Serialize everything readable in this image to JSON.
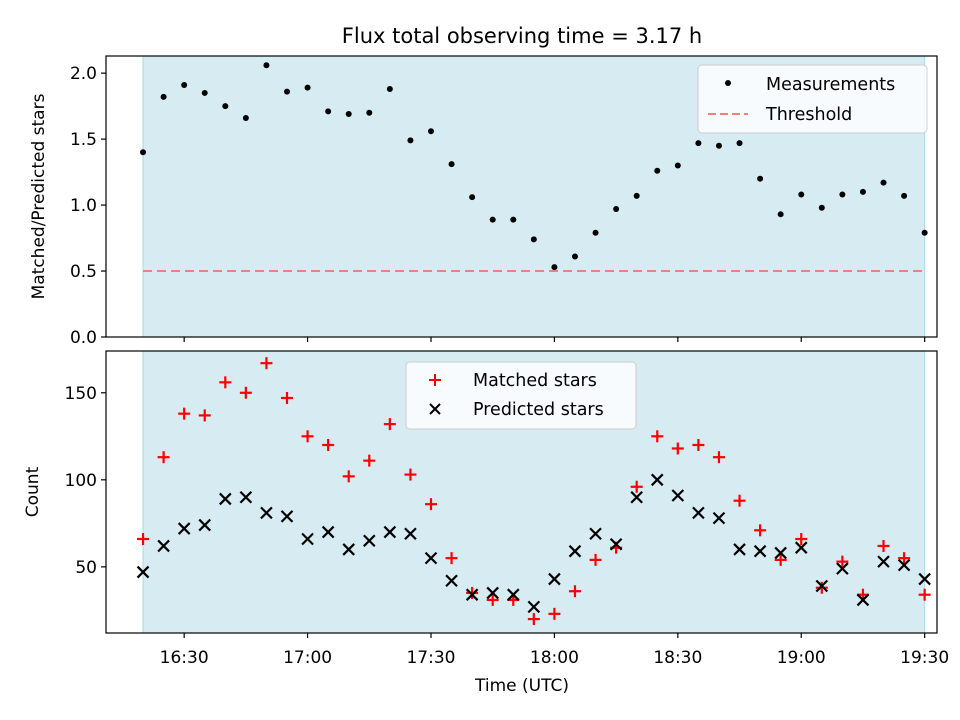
{
  "colors": {
    "shade": "#add8e6",
    "measure": "#000000",
    "threshold": "#f08080",
    "matched": "#ff0000",
    "predicted": "#000000"
  },
  "chart_data": [
    {
      "type": "scatter",
      "title": "Flux total observing time = 3.17 h",
      "xlabel": "",
      "ylabel": "Matched/Predicted stars",
      "xlim": [
        "16:11",
        "19:33"
      ],
      "ylim": [
        0.0,
        2.13
      ],
      "yticks": [
        0.0,
        0.5,
        1.0,
        1.5,
        2.0
      ],
      "ytick_labels": [
        "0.0",
        "0.5",
        "1.0",
        "1.5",
        "2.0"
      ],
      "shaded_region": [
        "16:20",
        "19:30"
      ],
      "legend": {
        "position": "top-right",
        "measurements": "Measurements",
        "threshold": "Threshold"
      },
      "threshold": 0.5,
      "x": [
        "16:20",
        "16:25",
        "16:30",
        "16:35",
        "16:40",
        "16:45",
        "16:50",
        "16:55",
        "17:00",
        "17:05",
        "17:10",
        "17:15",
        "17:20",
        "17:25",
        "17:30",
        "17:35",
        "17:40",
        "17:45",
        "17:50",
        "17:55",
        "18:00",
        "18:05",
        "18:10",
        "18:15",
        "18:20",
        "18:25",
        "18:30",
        "18:35",
        "18:40",
        "18:45",
        "18:50",
        "18:55",
        "19:00",
        "19:05",
        "19:10",
        "19:15",
        "19:20",
        "19:25",
        "19:30"
      ],
      "series": [
        {
          "name": "Measurements",
          "values": [
            1.4,
            1.82,
            1.91,
            1.85,
            1.75,
            1.66,
            2.06,
            1.86,
            1.89,
            1.71,
            1.69,
            1.7,
            1.88,
            1.49,
            1.56,
            1.31,
            1.06,
            0.89,
            0.89,
            0.74,
            0.53,
            0.61,
            0.79,
            0.97,
            1.07,
            1.26,
            1.3,
            1.47,
            1.45,
            1.47,
            1.2,
            0.93,
            1.08,
            0.98,
            1.08,
            1.1,
            1.17,
            1.07,
            0.79
          ]
        }
      ]
    },
    {
      "type": "scatter",
      "title": "",
      "xlabel": "Time (UTC)",
      "ylabel": "Count",
      "xlim": [
        "16:11",
        "19:33"
      ],
      "ylim": [
        12,
        174
      ],
      "yticks": [
        50,
        100,
        150
      ],
      "ytick_labels": [
        "50",
        "100",
        "150"
      ],
      "xticks": [
        "16:30",
        "17:00",
        "17:30",
        "18:00",
        "18:30",
        "19:00",
        "19:30"
      ],
      "shaded_region": [
        "16:20",
        "19:30"
      ],
      "legend": {
        "position": "top-center",
        "matched": "Matched stars",
        "predicted": "Predicted stars"
      },
      "x": [
        "16:20",
        "16:25",
        "16:30",
        "16:35",
        "16:40",
        "16:45",
        "16:50",
        "16:55",
        "17:00",
        "17:05",
        "17:10",
        "17:15",
        "17:20",
        "17:25",
        "17:30",
        "17:35",
        "17:40",
        "17:45",
        "17:50",
        "17:55",
        "18:00",
        "18:05",
        "18:10",
        "18:15",
        "18:20",
        "18:25",
        "18:30",
        "18:35",
        "18:40",
        "18:45",
        "18:50",
        "18:55",
        "19:00",
        "19:05",
        "19:10",
        "19:15",
        "19:20",
        "19:25",
        "19:30"
      ],
      "series": [
        {
          "name": "Matched stars",
          "values": [
            66,
            113,
            138,
            137,
            156,
            150,
            167,
            147,
            125,
            120,
            102,
            111,
            132,
            103,
            86,
            55,
            35,
            31,
            31,
            20,
            23,
            36,
            54,
            61,
            96,
            125,
            118,
            120,
            113,
            88,
            71,
            54,
            66,
            38,
            53,
            34,
            62,
            55,
            34
          ]
        },
        {
          "name": "Predicted stars",
          "values": [
            47,
            62,
            72,
            74,
            89,
            90,
            81,
            79,
            66,
            70,
            60,
            65,
            70,
            69,
            55,
            42,
            34,
            35,
            34,
            27,
            43,
            59,
            69,
            63,
            90,
            100,
            91,
            81,
            78,
            60,
            59,
            58,
            61,
            39,
            49,
            31,
            53,
            51,
            43
          ]
        }
      ]
    }
  ]
}
